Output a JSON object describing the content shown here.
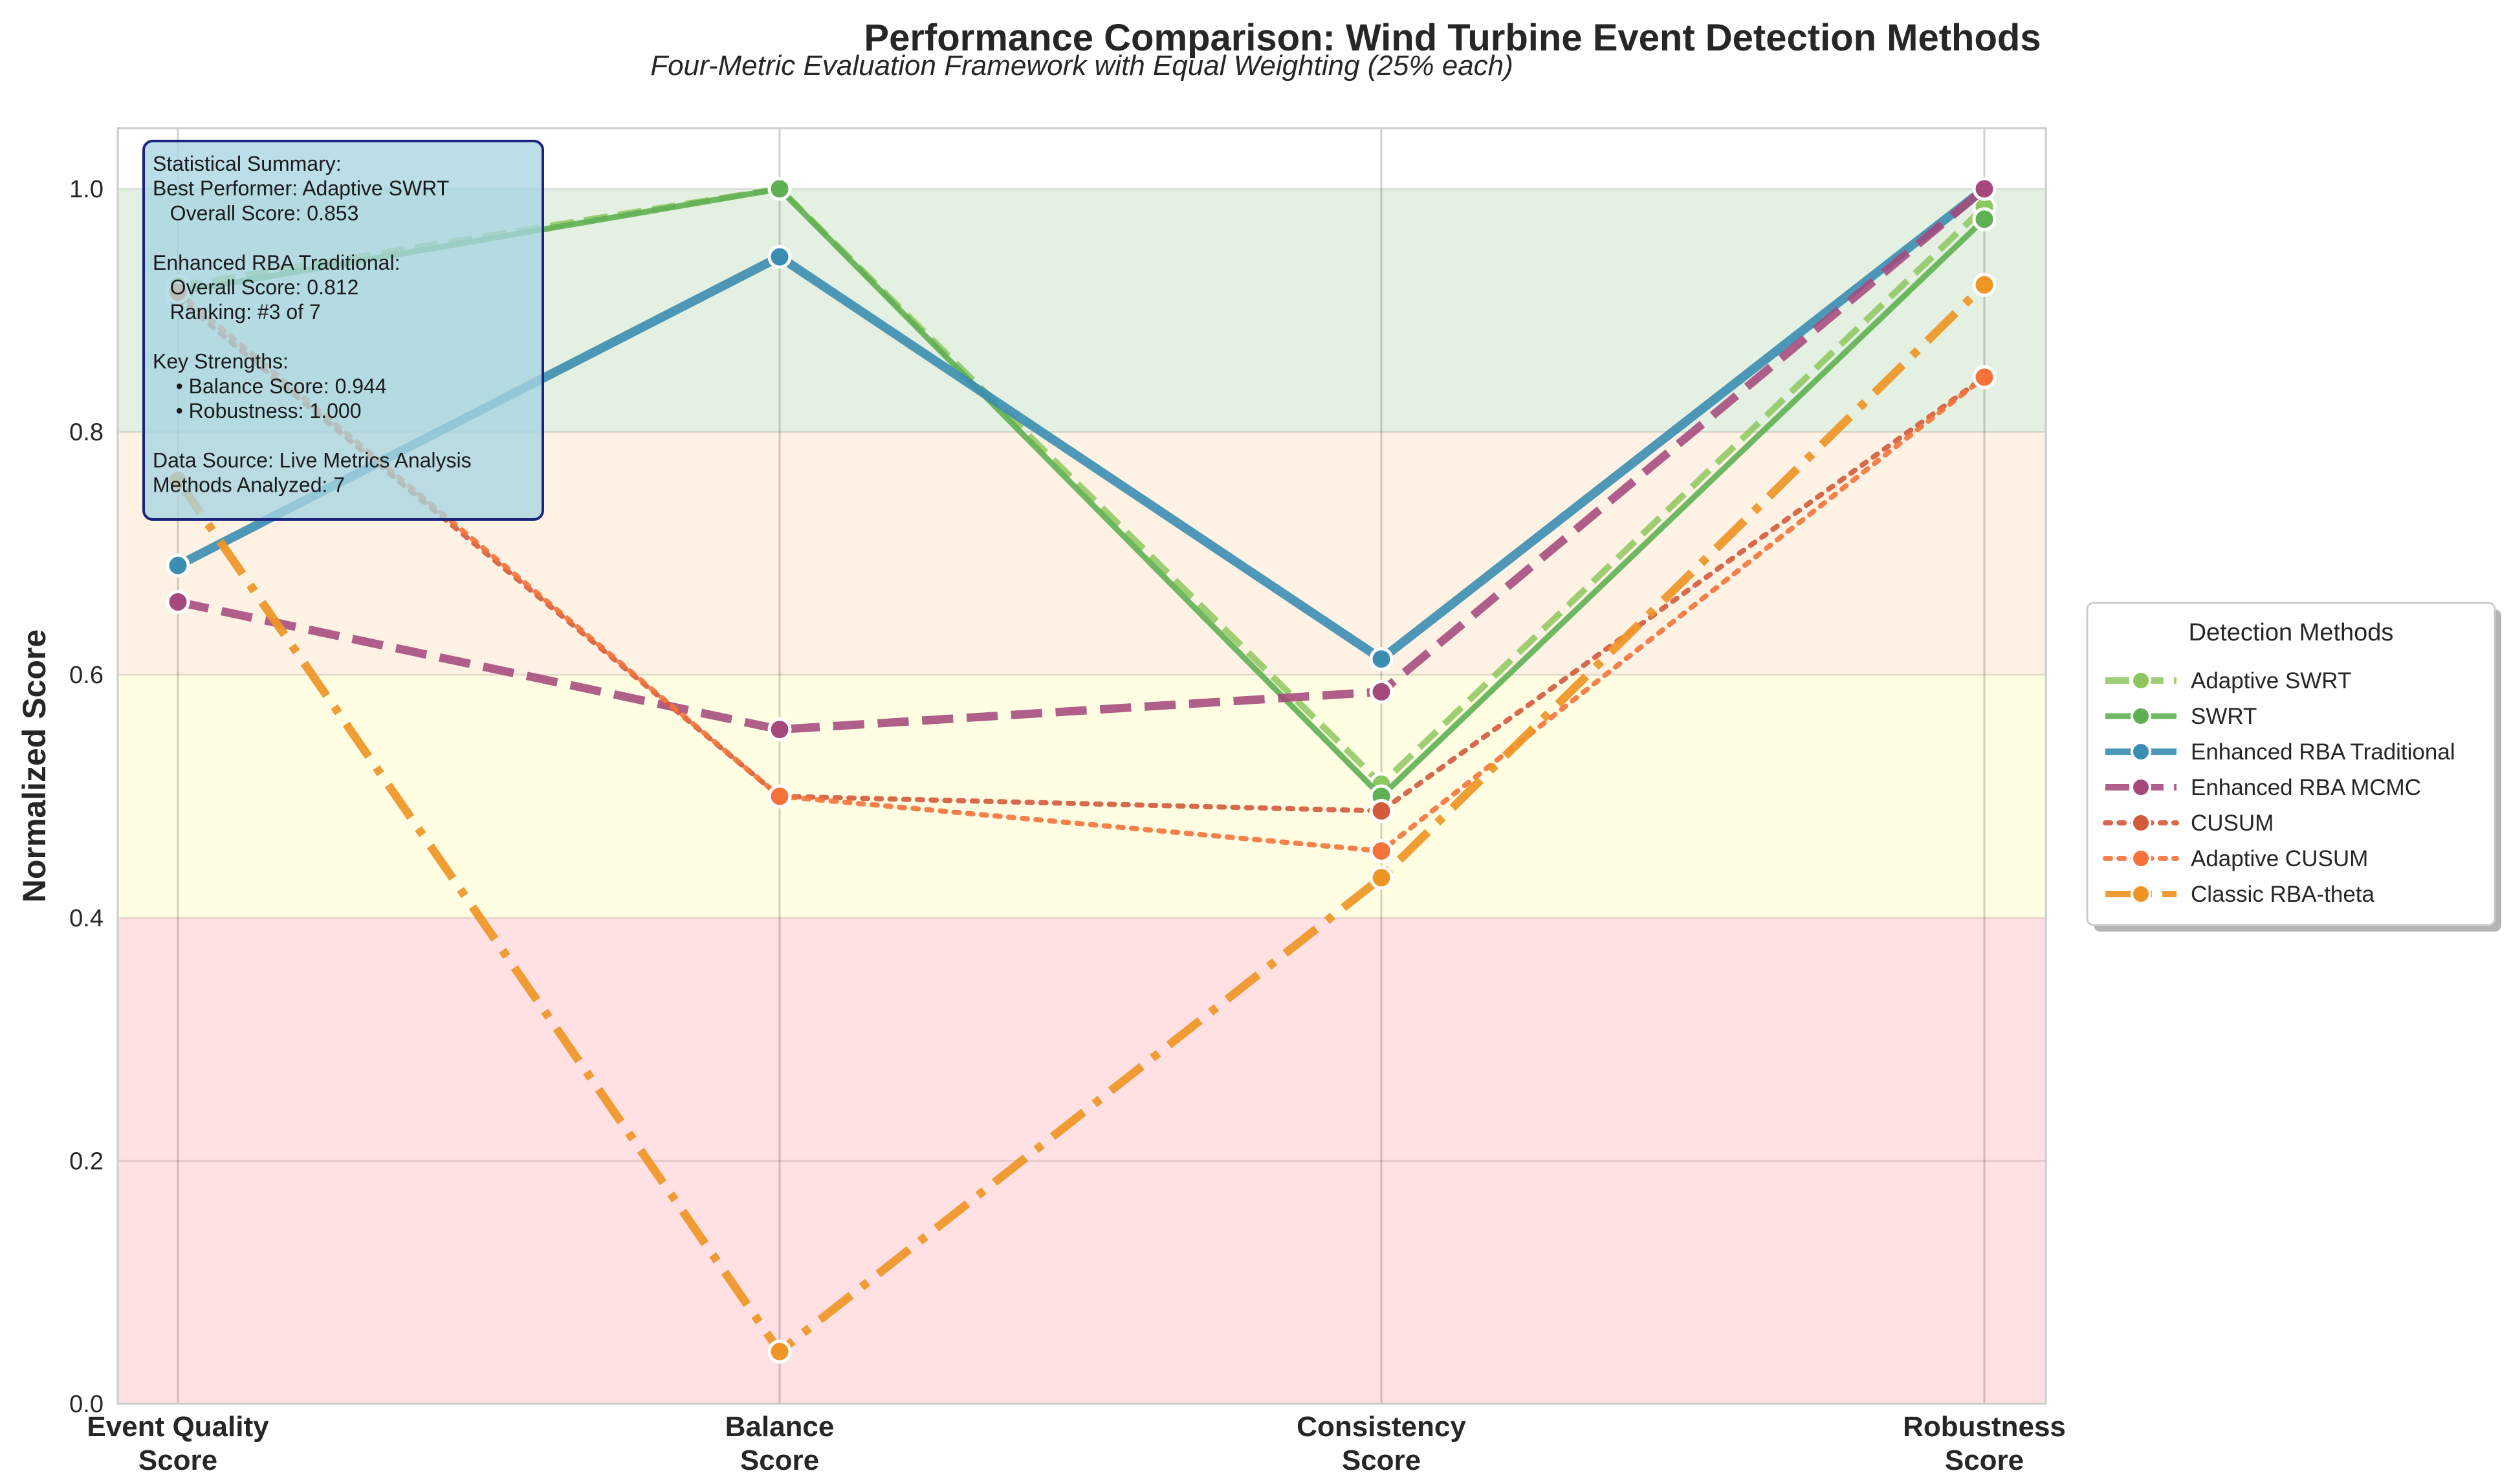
{
  "chart_data": {
    "type": "line",
    "title": "Performance Comparison: Wind Turbine Event Detection Methods",
    "subtitle": "Four-Metric Evaluation Framework with Equal Weighting (25% each)",
    "xlabel": "",
    "ylabel": "Normalized Score",
    "ylim": [
      0,
      1.05
    ],
    "yticks": [
      "0.0",
      "0.2",
      "0.4",
      "0.6",
      "0.8",
      "1.0"
    ],
    "grid": true,
    "categories": [
      [
        "Event Quality",
        "Score"
      ],
      [
        "Balance",
        "Score"
      ],
      [
        "Consistency",
        "Score"
      ],
      [
        "Robustness",
        "Score"
      ]
    ],
    "bands": [
      {
        "from": 0.0,
        "to": 0.4,
        "color": "#ffe1e3"
      },
      {
        "from": 0.4,
        "to": 0.6,
        "color": "#fffee3"
      },
      {
        "from": 0.6,
        "to": 0.8,
        "color": "#fdf2e3"
      },
      {
        "from": 0.8,
        "to": 1.0,
        "color": "#e4f1e2"
      }
    ],
    "series": [
      {
        "name": "Adaptive SWRT",
        "values": [
          0.92,
          1.0,
          0.51,
          0.985
        ],
        "color": "#8dc75e",
        "dash": "dashed",
        "width": 10,
        "opacity": 0.85
      },
      {
        "name": "SWRT",
        "values": [
          0.915,
          1.0,
          0.5,
          0.975
        ],
        "color": "#5fb053",
        "dash": "solid",
        "width": 9,
        "opacity": 0.9
      },
      {
        "name": "Enhanced RBA Traditional",
        "values": [
          0.69,
          0.944,
          0.613,
          1.0
        ],
        "color": "#3b8db1",
        "dash": "solid",
        "width": 14,
        "opacity": 0.9
      },
      {
        "name": "Enhanced RBA MCMC",
        "values": [
          0.66,
          0.555,
          0.586,
          1.0
        ],
        "color": "#a5497c",
        "dash": "dashed-long",
        "width": 13,
        "opacity": 0.88
      },
      {
        "name": "CUSUM",
        "values": [
          0.91,
          0.5,
          0.488,
          0.845
        ],
        "color": "#d35a3b",
        "dash": "dotted",
        "width": 8,
        "opacity": 0.9
      },
      {
        "name": "Adaptive CUSUM",
        "values": [
          0.915,
          0.5,
          0.455,
          0.845
        ],
        "color": "#f5733b",
        "dash": "dotted",
        "width": 8,
        "opacity": 0.9
      },
      {
        "name": "Classic RBA-theta",
        "values": [
          0.76,
          0.043,
          0.433,
          0.921
        ],
        "color": "#ef9525",
        "dash": "dashdot",
        "width": 13,
        "opacity": 0.92
      }
    ],
    "legend": {
      "title": "Detection Methods",
      "position": "center-right"
    },
    "annotation": {
      "position": "top-left",
      "lines": [
        "Statistical Summary:",
        "Best Performer: Adaptive SWRT",
        "   Overall Score: 0.853",
        "",
        "Enhanced RBA Traditional:",
        "   Overall Score: 0.812",
        "   Ranking: #3 of 7",
        "",
        "Key Strengths:",
        "    • Balance Score: 0.944",
        "    • Robustness: 1.000",
        "",
        "Data Source: Live Metrics Analysis",
        "Methods Analyzed: 7"
      ]
    }
  }
}
